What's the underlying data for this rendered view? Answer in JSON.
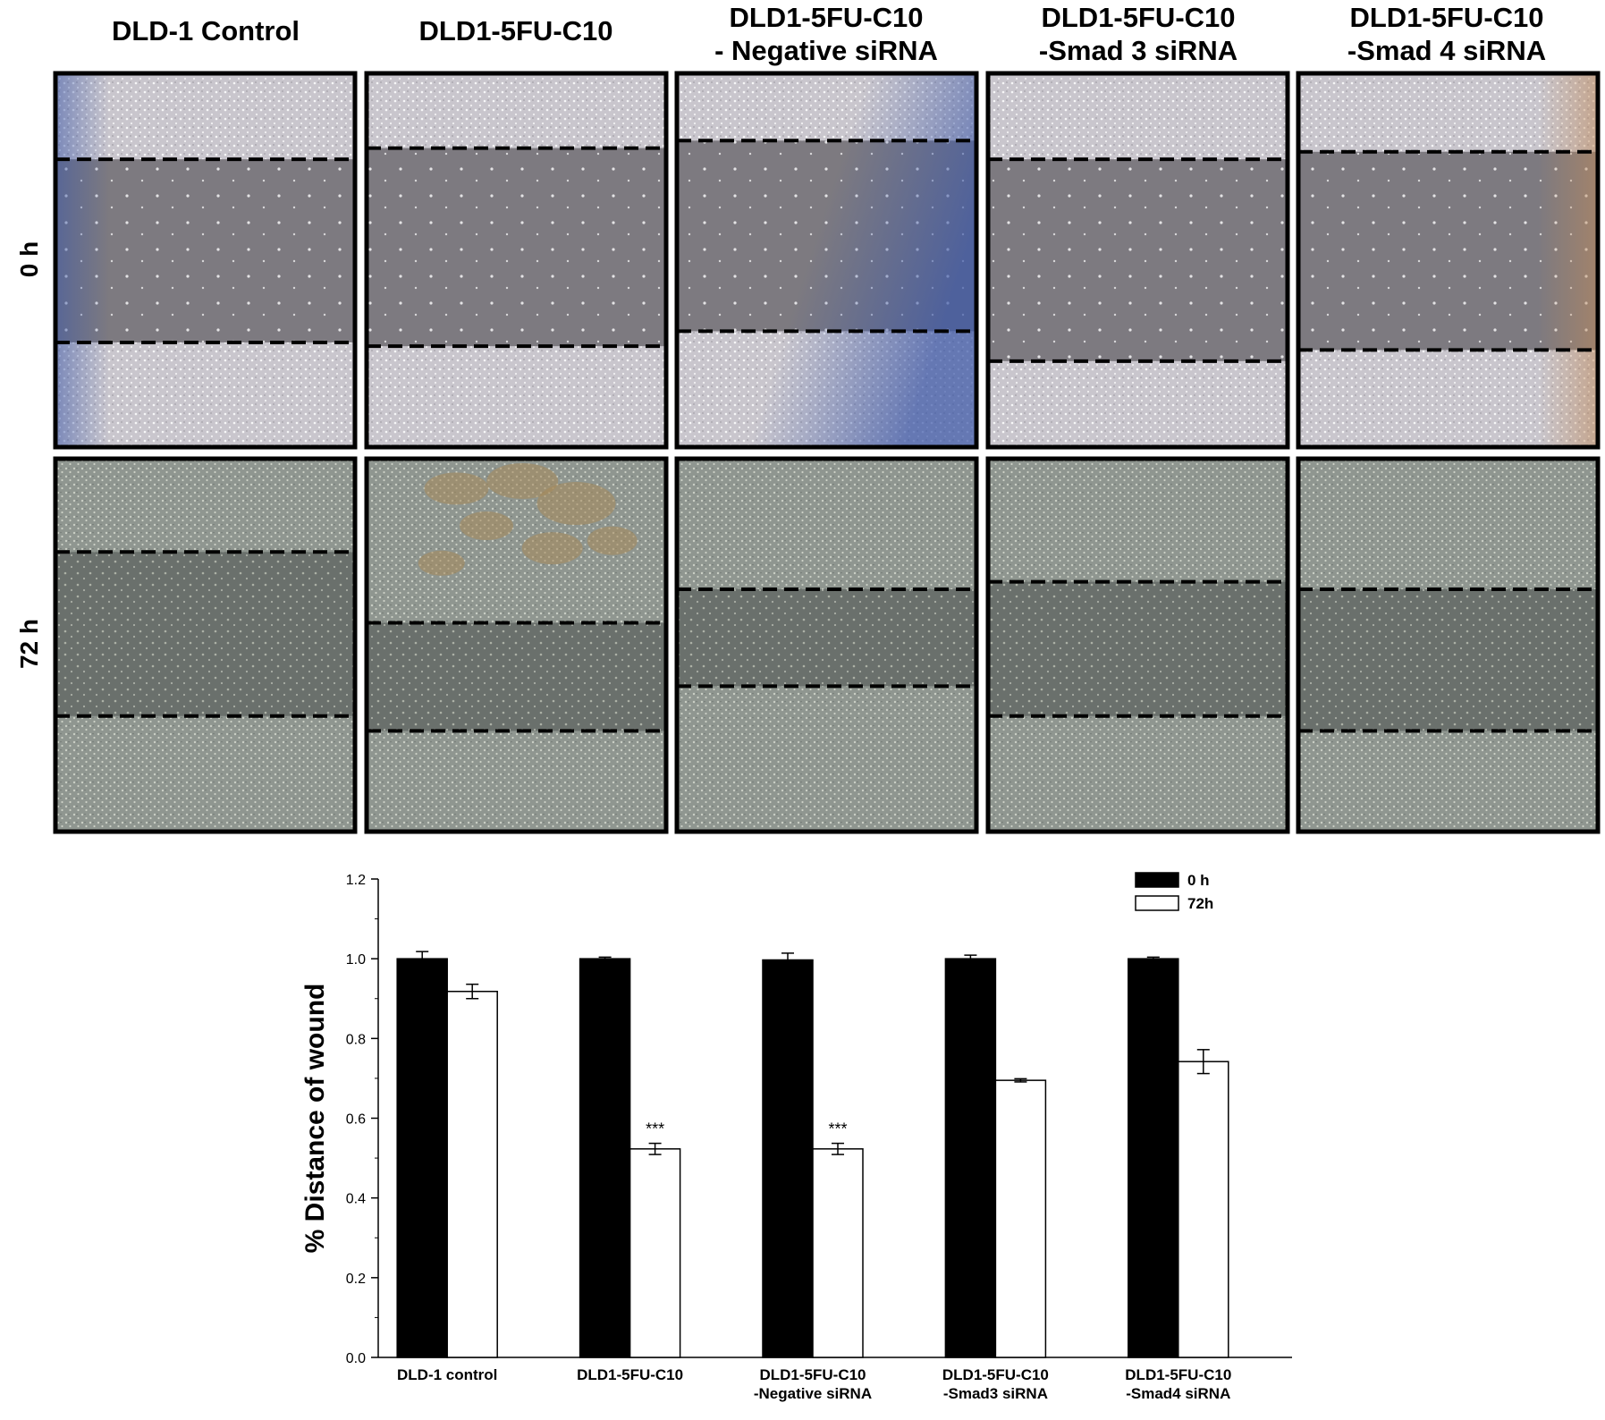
{
  "figure": {
    "column_titles": [
      [
        "DLD-1 Control"
      ],
      [
        "DLD1-5FU-C10"
      ],
      [
        "DLD1-5FU-C10",
        "- Negative siRNA"
      ],
      [
        "DLD1-5FU-C10",
        "-Smad 3 siRNA"
      ],
      [
        "DLD1-5FU-C10",
        "-Smad 4 siRNA"
      ]
    ],
    "row_labels": [
      "0 h",
      "72 h"
    ],
    "colors": {
      "panel_border": "#000000",
      "cells_0h": "#c9c6cd",
      "wound_0h": "#7d7a80",
      "cells_72h": "#8f9690",
      "wound_72h": "#6a706c",
      "blue_tint": "#3a56a8",
      "brown_tint": "#a88a5a",
      "bar_0h": "#000000",
      "bar_72h": "#ffffff"
    }
  },
  "chart_data": {
    "type": "bar",
    "categories": [
      [
        "DLD-1 control"
      ],
      [
        "DLD1-5FU-C10"
      ],
      [
        "DLD1-5FU-C10",
        "-Negative siRNA"
      ],
      [
        "DLD1-5FU-C10",
        "-Smad3 siRNA"
      ],
      [
        "DLD1-5FU-C10",
        "-Smad4 siRNA"
      ]
    ],
    "series": [
      {
        "name": "0 h",
        "values": [
          1.0,
          1.0,
          0.997,
          1.0,
          1.0
        ],
        "errors": [
          0.018,
          0.004,
          0.017,
          0.009,
          0.004
        ]
      },
      {
        "name": "72h",
        "values": [
          0.918,
          0.523,
          0.523,
          0.695,
          0.742
        ],
        "errors": [
          0.018,
          0.014,
          0.014,
          0.004,
          0.03
        ]
      }
    ],
    "annotations": [
      {
        "series": 1,
        "category": 1,
        "text": "***"
      },
      {
        "series": 1,
        "category": 2,
        "text": "***"
      }
    ],
    "ylabel": "% Distance of wound",
    "xlabel": "",
    "ylim": [
      0.0,
      1.2
    ],
    "yticks": [
      "0.0",
      "0.2",
      "0.4",
      "0.6",
      "0.8",
      "1.0",
      "1.2"
    ],
    "legend_position": "top-right",
    "grid": false
  }
}
